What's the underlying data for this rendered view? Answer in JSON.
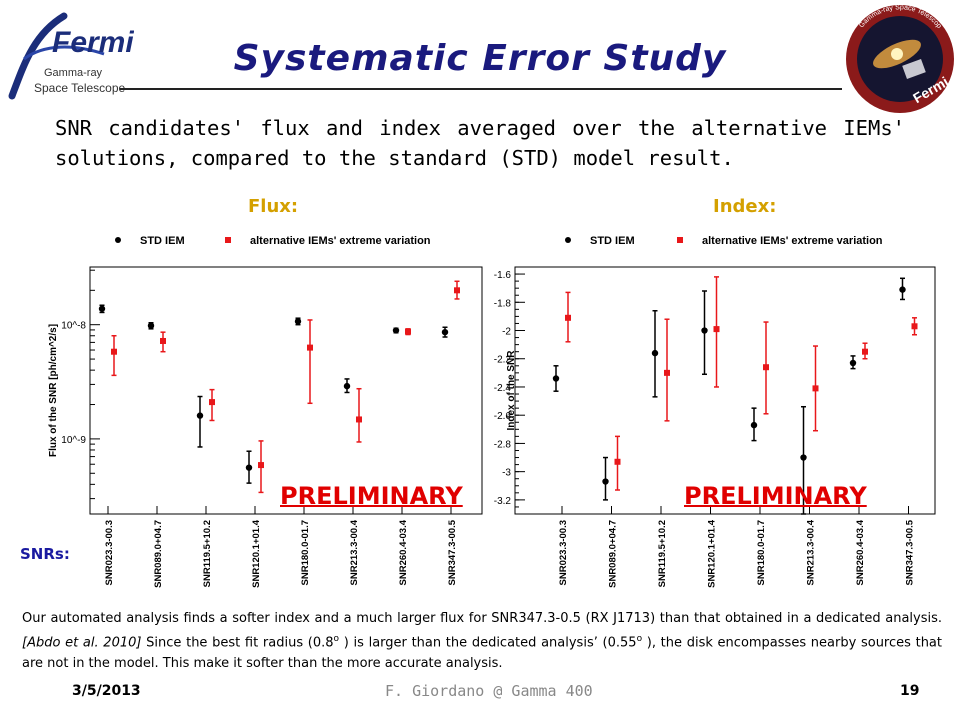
{
  "header": {
    "title": "Systematic Error Study",
    "logo_left": {
      "brand": "Fermi",
      "line1": "Gamma-ray",
      "line2": "Space Telescope"
    },
    "logo_right": {
      "ring_text": "Gamma-ray Space Telescope",
      "label": "Fermi"
    }
  },
  "intro_text": "SNR candidates' flux and index averaged over the alternative IEMs' solutions, compared to the standard (STD) model result.",
  "labels": {
    "flux": "Flux:",
    "index": "Index:",
    "snrs": "SNRs:",
    "preliminary": "PRELIMINARY"
  },
  "colors": {
    "std": "#000000",
    "alt": "#e8171a",
    "label_gold": "#d4a000",
    "title_navy": "#1a1a7e"
  },
  "chart_data": [
    {
      "type": "scatter",
      "y_scale": "log",
      "ylabel": "Flux of the SNR [ph/cm^2/s]",
      "ylim": [
        2.2e-10,
        3.2e-08
      ],
      "y_ticks": [
        {
          "v": 1e-09,
          "label": "10^-9"
        },
        {
          "v": 1e-08,
          "label": "10^-8"
        }
      ],
      "categories": [
        "SNR023.3-00.3",
        "SNR089.0+04.7",
        "SNR119.5+10.2",
        "SNR120.1+01.4",
        "SNR180.0-01.7",
        "SNR213.3-00.4",
        "SNR260.4-03.4",
        "SNR347.3-00.5"
      ],
      "legend": {
        "std": "STD IEM",
        "alt": "alternative IEMs' extreme variation",
        "placement": "top"
      },
      "series": [
        {
          "name": "STD IEM",
          "points": [
            {
              "y": 1.38e-08,
              "lo": 1.28e-08,
              "hi": 1.48e-08
            },
            {
              "y": 9.8e-09,
              "lo": 9.2e-09,
              "hi": 1.04e-08
            },
            {
              "y": 1.6e-09,
              "lo": 8.5e-10,
              "hi": 2.35e-09
            },
            {
              "y": 5.6e-10,
              "lo": 4.1e-10,
              "hi": 7.8e-10
            },
            {
              "y": 1.07e-08,
              "lo": 1e-08,
              "hi": 1.14e-08
            },
            {
              "y": 2.9e-09,
              "lo": 2.55e-09,
              "hi": 3.35e-09
            },
            {
              "y": 8.9e-09,
              "lo": 8.5e-09,
              "hi": 9.3e-09
            },
            {
              "y": 8.6e-09,
              "lo": 7.8e-09,
              "hi": 9.5e-09
            }
          ]
        },
        {
          "name": "alternative IEMs' extreme variation",
          "points": [
            {
              "y": 5.8e-09,
              "lo": 3.6e-09,
              "hi": 8e-09
            },
            {
              "y": 7.2e-09,
              "lo": 5.8e-09,
              "hi": 8.6e-09
            },
            {
              "y": 2.1e-09,
              "lo": 1.45e-09,
              "hi": 2.7e-09
            },
            {
              "y": 5.9e-10,
              "lo": 3.4e-10,
              "hi": 9.6e-10
            },
            {
              "y": 6.3e-09,
              "lo": 2.05e-09,
              "hi": 1.1e-08
            },
            {
              "y": 1.48e-09,
              "lo": 9.4e-10,
              "hi": 2.75e-09
            },
            {
              "y": 8.7e-09,
              "lo": 8.2e-09,
              "hi": 9.2e-09
            },
            {
              "y": 2e-08,
              "lo": 1.68e-08,
              "hi": 2.4e-08
            }
          ]
        }
      ]
    },
    {
      "type": "scatter",
      "y_scale": "linear",
      "ylabel": "Index of the SNR",
      "ylim": [
        -3.3,
        -1.55
      ],
      "y_ticks": [
        {
          "v": -1.6,
          "label": "-1.6"
        },
        {
          "v": -1.8,
          "label": "-1.8"
        },
        {
          "v": -2,
          "label": "-2"
        },
        {
          "v": -2.2,
          "label": "-2.2"
        },
        {
          "v": -2.4,
          "label": "-2.4"
        },
        {
          "v": -2.6,
          "label": "-2.6"
        },
        {
          "v": -2.8,
          "label": "-2.8"
        },
        {
          "v": -3,
          "label": "-3"
        },
        {
          "v": -3.2,
          "label": "-3.2"
        }
      ],
      "categories": [
        "SNR023.3-00.3",
        "SNR089.0+04.7",
        "SNR119.5+10.2",
        "SNR120.1+01.4",
        "SNR180.0-01.7",
        "SNR213.3-00.4",
        "SNR260.4-03.4",
        "SNR347.3-00.5"
      ],
      "legend": {
        "std": "STD IEM",
        "alt": "alternative IEMs' extreme variation",
        "placement": "top"
      },
      "series": [
        {
          "name": "STD IEM",
          "points": [
            {
              "y": -2.34,
              "lo": -2.43,
              "hi": -2.25
            },
            {
              "y": -3.07,
              "lo": -3.2,
              "hi": -2.9
            },
            {
              "y": -2.16,
              "lo": -2.47,
              "hi": -1.86
            },
            {
              "y": -2.0,
              "lo": -2.31,
              "hi": -1.72
            },
            {
              "y": -2.67,
              "lo": -2.78,
              "hi": -2.55
            },
            {
              "y": -2.9,
              "lo": -3.3,
              "hi": -2.54
            },
            {
              "y": -2.23,
              "lo": -2.27,
              "hi": -2.18
            },
            {
              "y": -1.71,
              "lo": -1.78,
              "hi": -1.63
            }
          ]
        },
        {
          "name": "alternative IEMs' extreme variation",
          "points": [
            {
              "y": -1.91,
              "lo": -2.08,
              "hi": -1.73
            },
            {
              "y": -2.93,
              "lo": -3.13,
              "hi": -2.75
            },
            {
              "y": -2.3,
              "lo": -2.64,
              "hi": -1.92
            },
            {
              "y": -1.99,
              "lo": -2.4,
              "hi": -1.62
            },
            {
              "y": -2.26,
              "lo": -2.59,
              "hi": -1.94
            },
            {
              "y": -2.41,
              "lo": -2.71,
              "hi": -2.11
            },
            {
              "y": -2.15,
              "lo": -2.2,
              "hi": -2.09
            },
            {
              "y": -1.97,
              "lo": -2.03,
              "hi": -1.91
            }
          ]
        }
      ]
    }
  ],
  "footnote": {
    "part1": "Our automated analysis finds a softer index and a much larger flux for SNR347.3-0.5 (RX J1713) than that obtained in a dedicated analysis.",
    "citation": "[Abdo et al. 2010]",
    "part2": "Since the best fit radius (0.8",
    "deg1": "o",
    "part3": ") is larger than the dedicated analysis’ (0.55",
    "deg2": "o",
    "part4": "), the disk encompasses nearby sources that are not in the model. This make it softer than the more accurate analysis."
  },
  "footer": {
    "date": "3/5/2013",
    "author": "F. Giordano @ Gamma 400",
    "page": "19"
  }
}
